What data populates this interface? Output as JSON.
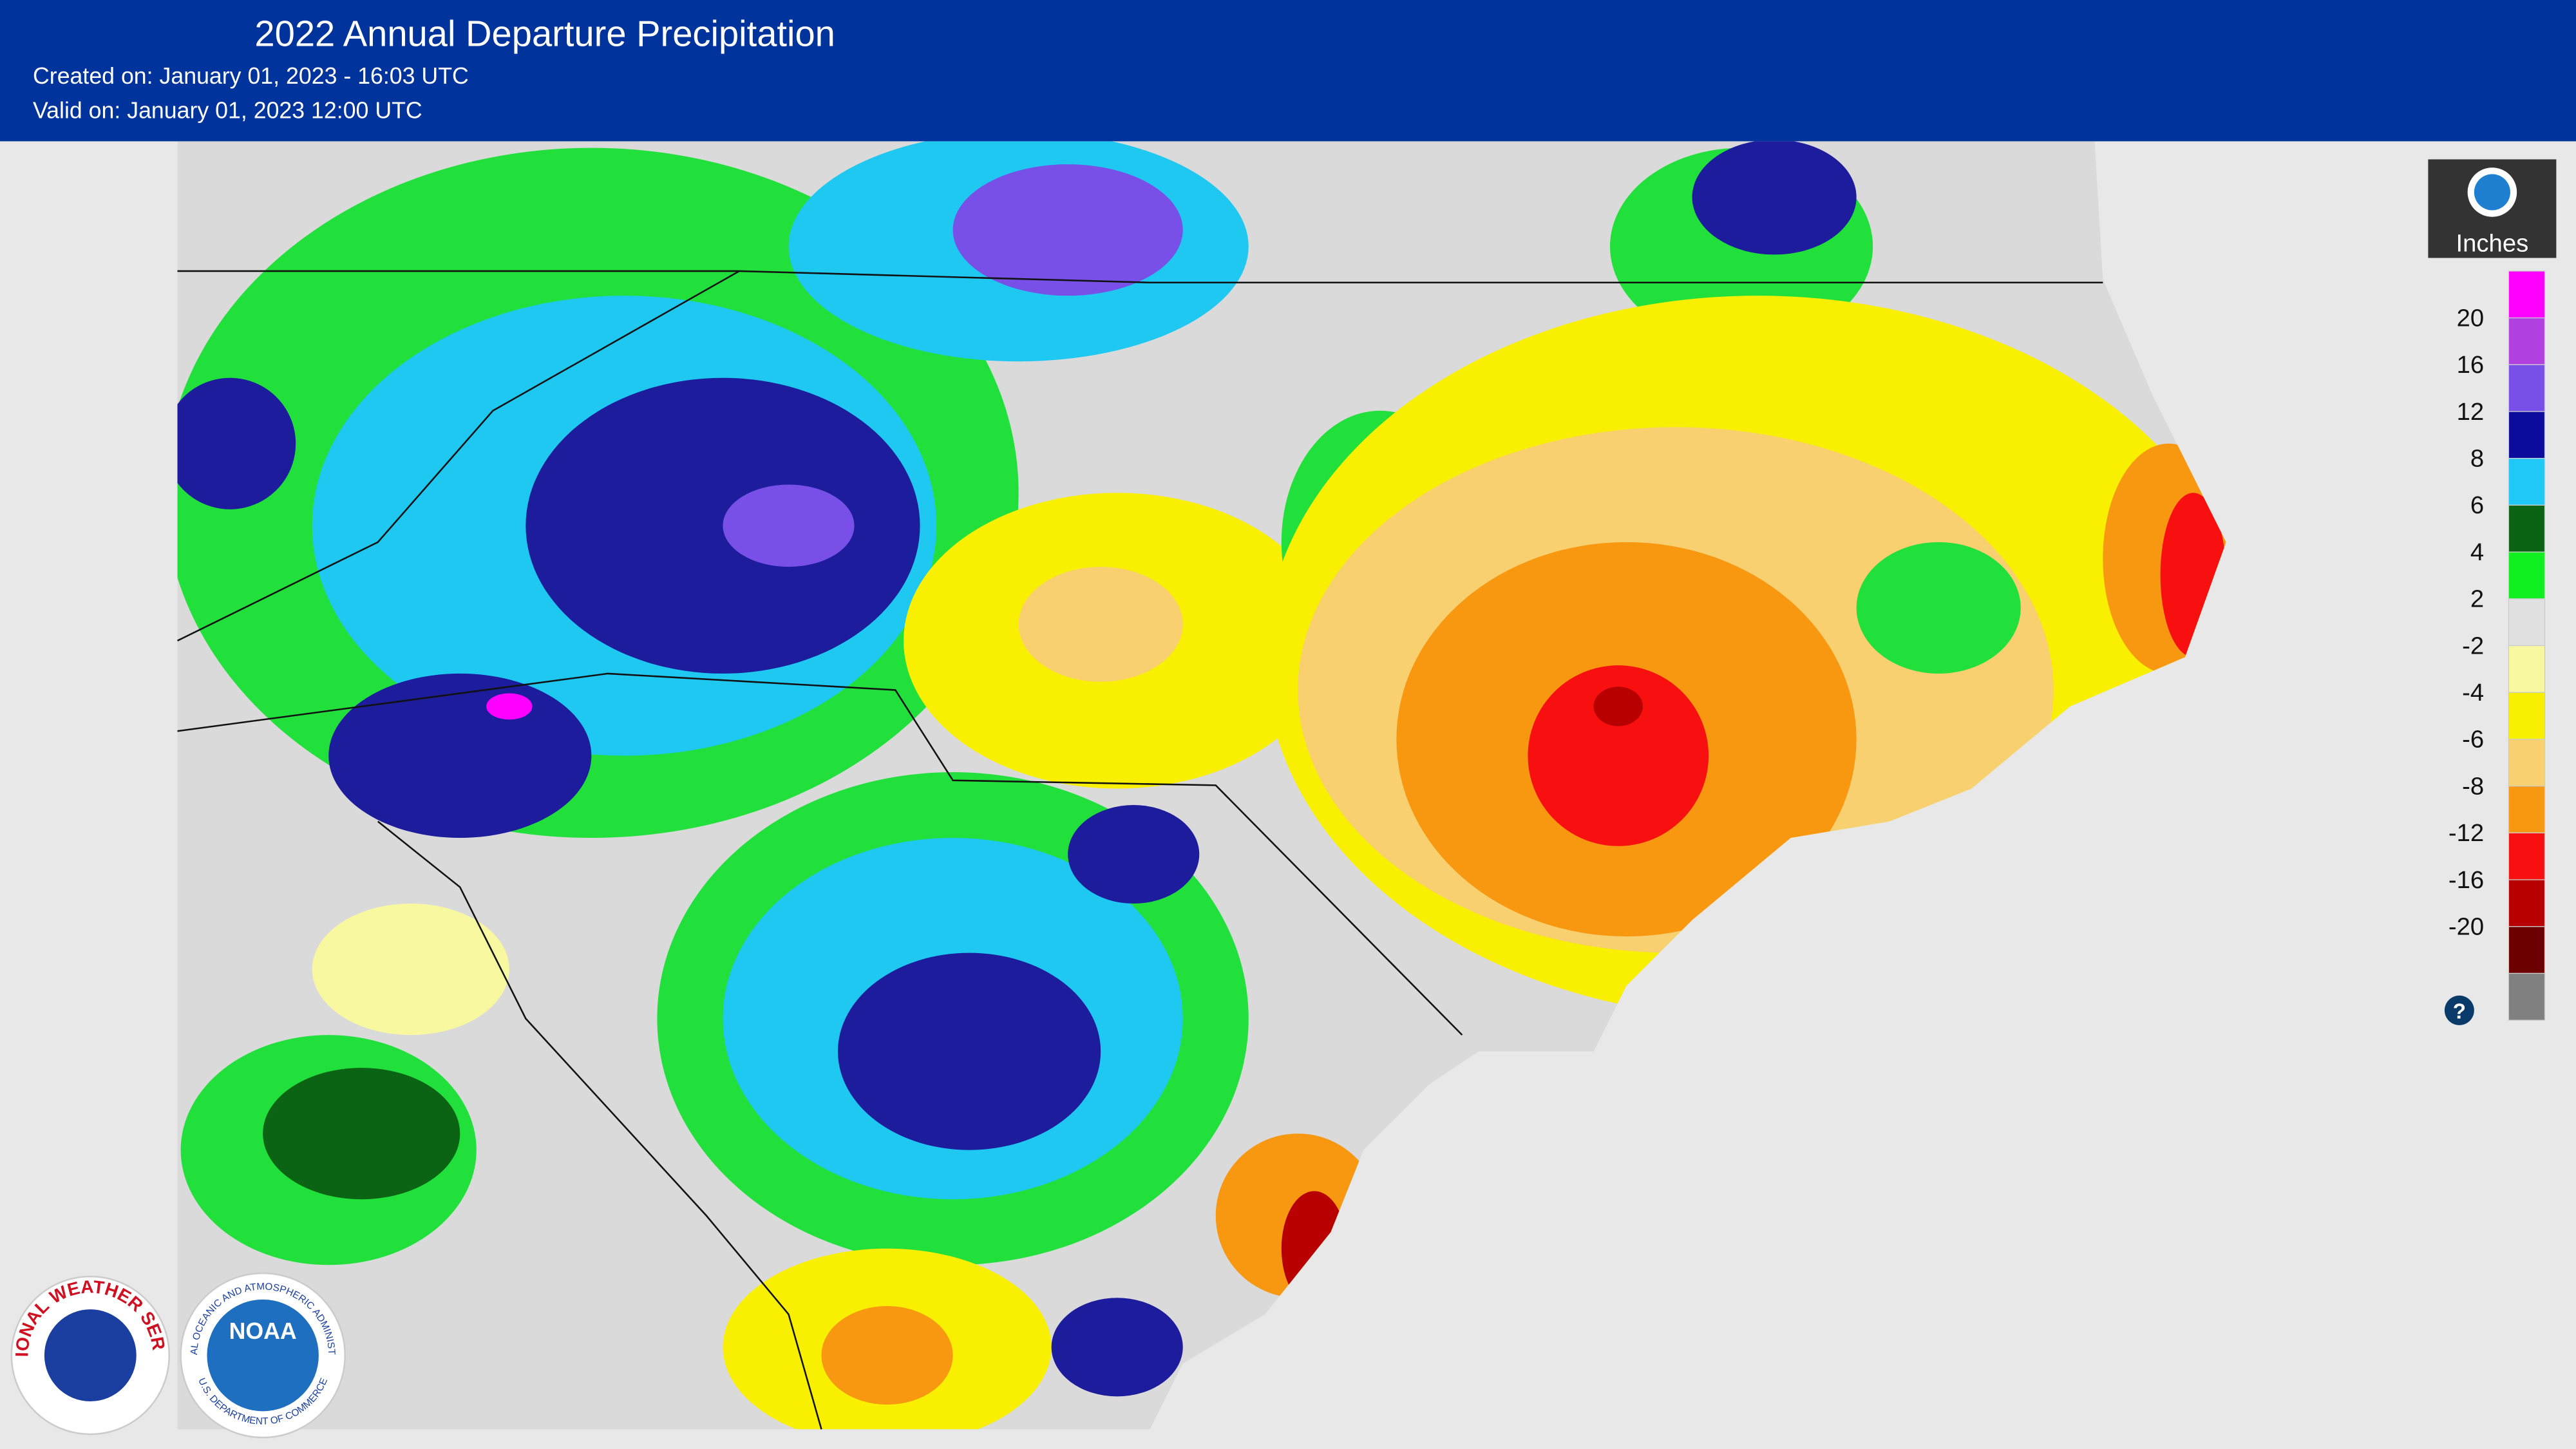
{
  "header": {
    "title": "2022 Annual Departure Precipitation",
    "created": "Created on: January 01, 2023 - 16:03 UTC",
    "valid": "Valid on: January 01, 2023 12:00 UTC"
  },
  "legend": {
    "unit": "Inches",
    "labels": [
      20,
      16,
      12,
      8,
      6,
      4,
      2,
      -2,
      -4,
      -6,
      -8,
      -12,
      -16,
      -20
    ],
    "colors": [
      "#ff00ff",
      "#b040e0",
      "#7850e8",
      "#0c0c9c",
      "#20c8f8",
      "#0a6414",
      "#10f020",
      "#e0e0e0",
      "#f8f8a0",
      "#f8f000",
      "#f8d070",
      "#f89810",
      "#f81010",
      "#b80000",
      "#6c0000",
      "#808080"
    ],
    "help": "?"
  },
  "logos": {
    "nws": "NATIONAL WEATHER SERVICE",
    "noaa": "NOAA",
    "noaa_ring": "NATIONAL OCEANIC AND ATMOSPHERIC ADMINISTRATION",
    "noaa_dept": "U.S. DEPARTMENT OF COMMERCE"
  }
}
